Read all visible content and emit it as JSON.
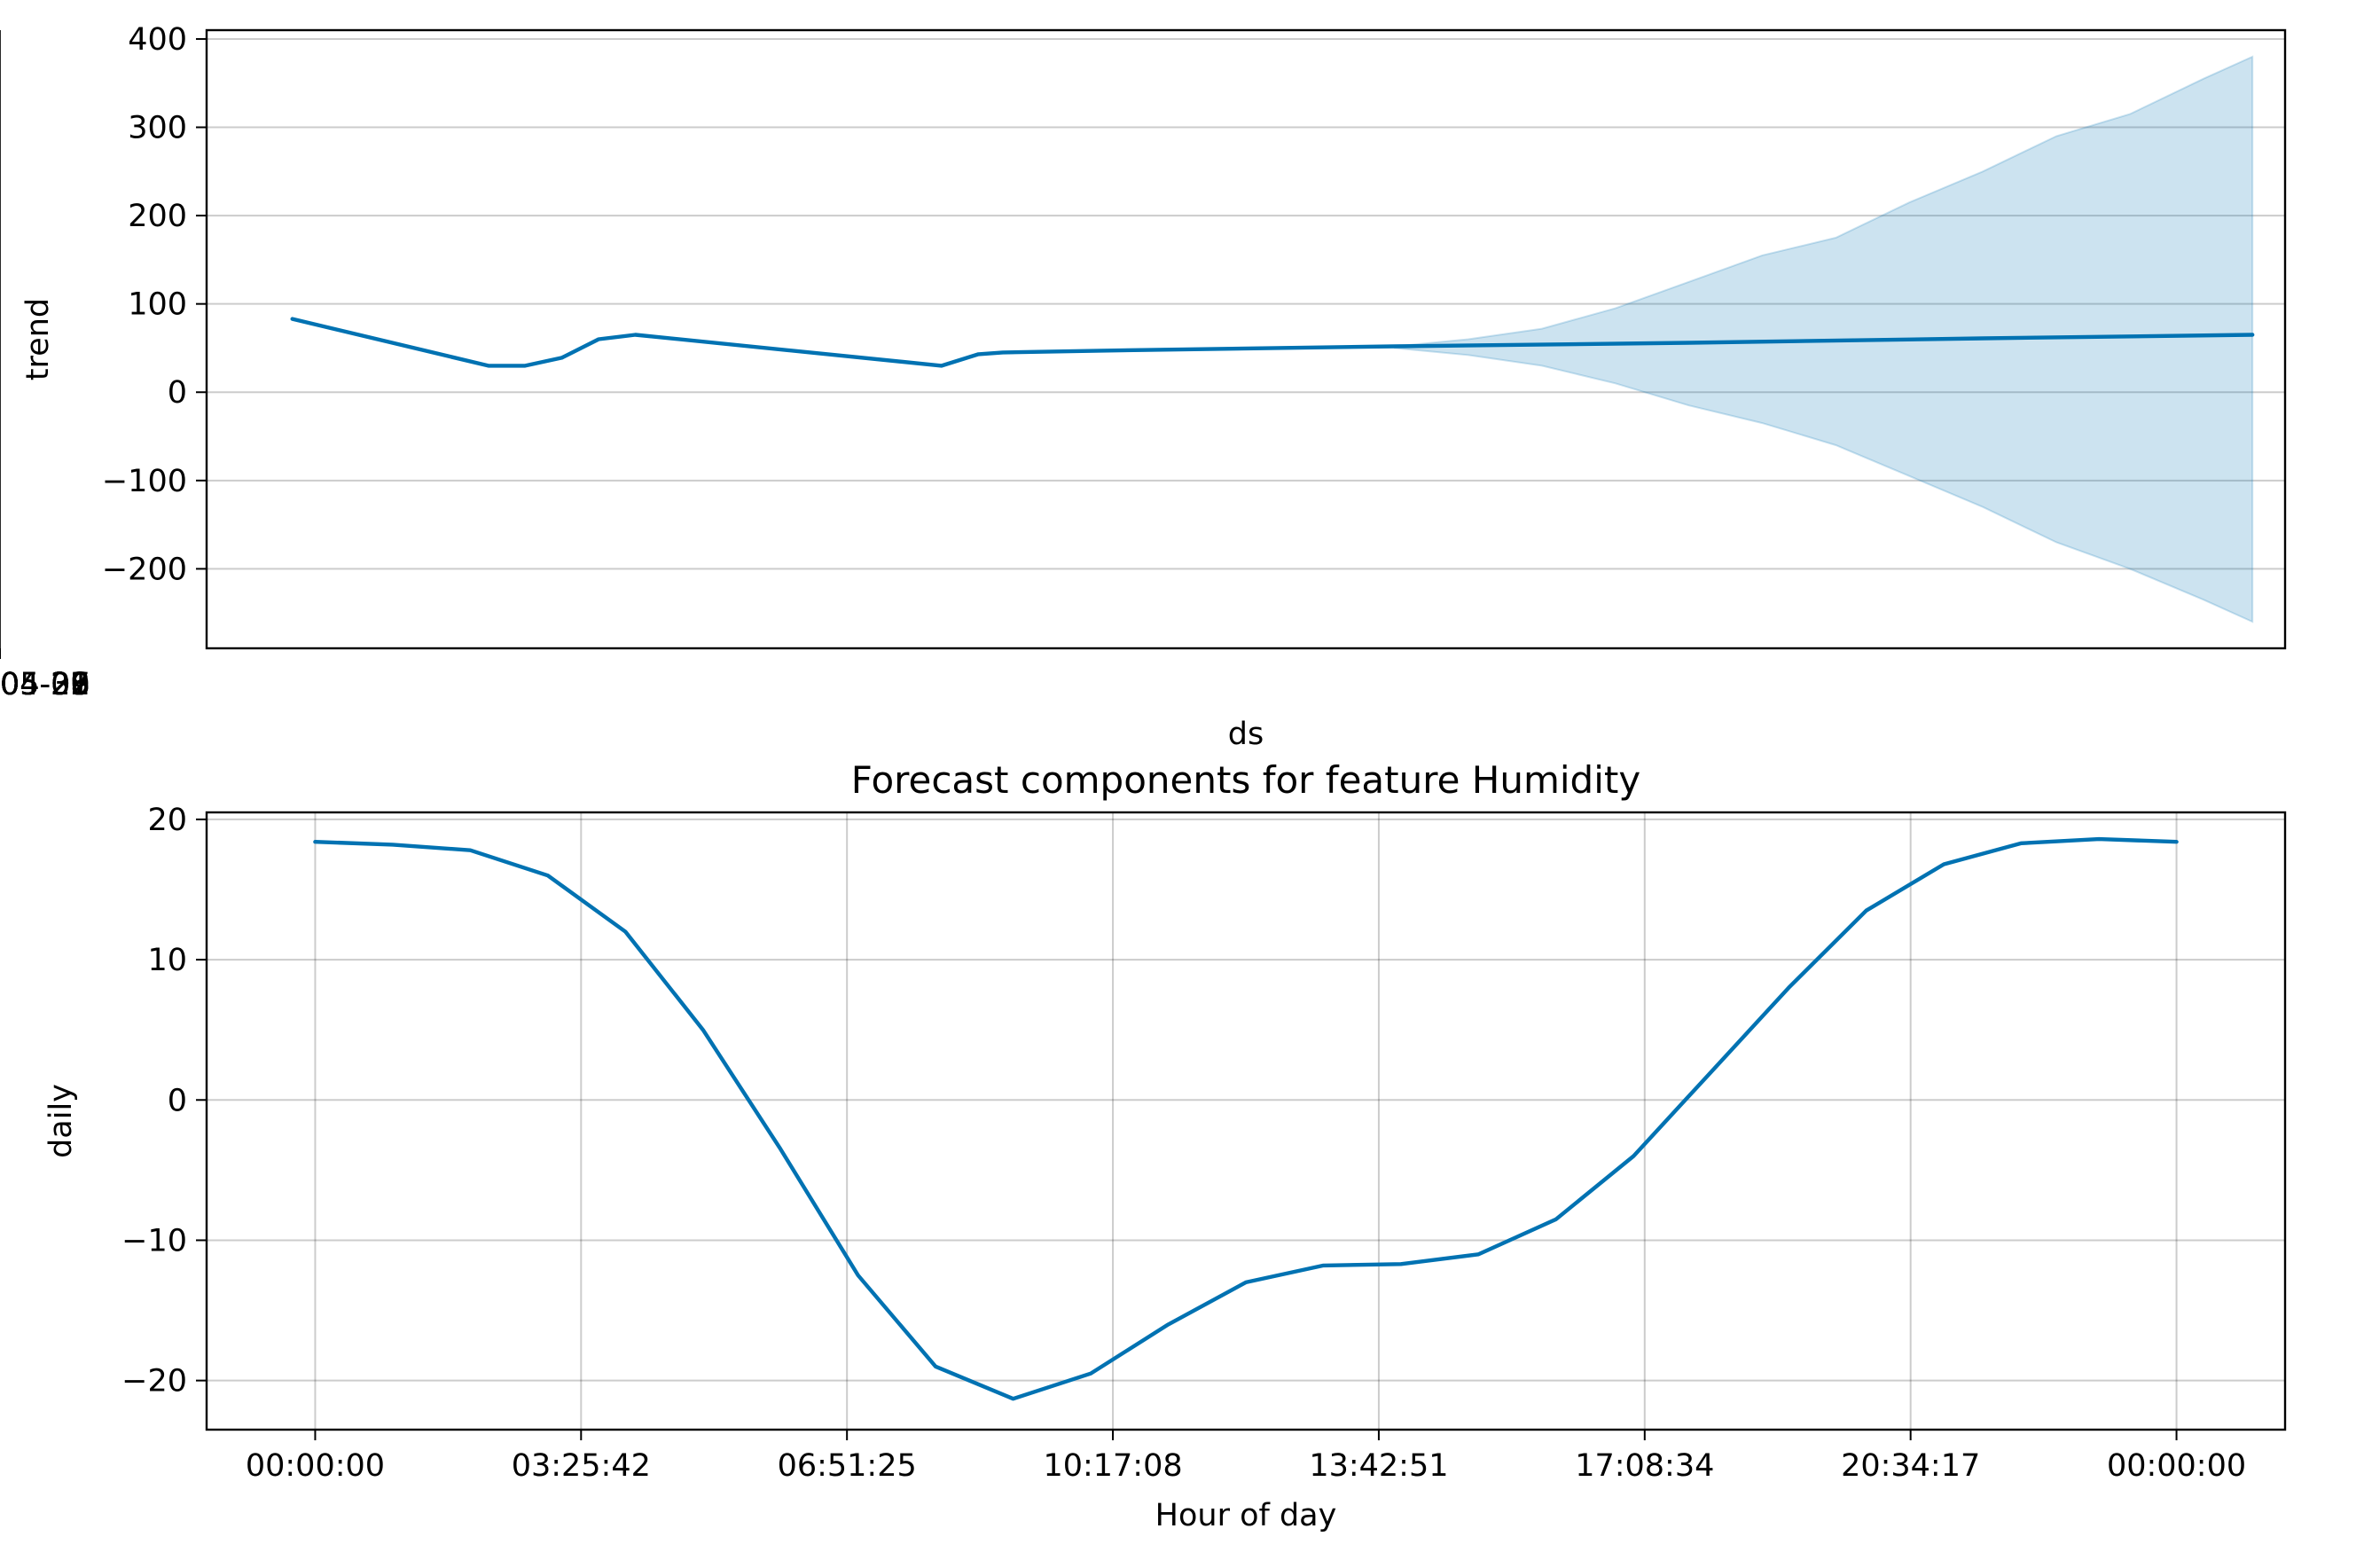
{
  "chart_data": [
    {
      "type": "area",
      "title": "",
      "xlabel": "ds",
      "ylabel": "trend",
      "x_scale": "date",
      "xlim": [
        "2025-04-25T23:00",
        "2025-05-03T00:40"
      ],
      "ylim": [
        -290,
        410
      ],
      "x_ticks": [
        "2025-04-26",
        "2025-04-27",
        "2025-04-28",
        "2025-04-29",
        "2025-04-30",
        "2025-05-01",
        "2025-05-02",
        "2025-05-03"
      ],
      "y_ticks": [
        -200,
        -100,
        0,
        100,
        200,
        300,
        400
      ],
      "y_tick_labels": [
        "−200",
        "−100",
        "0",
        "100",
        "200",
        "300",
        "400"
      ],
      "grid": true,
      "colors": {
        "line": "#0072b2",
        "band": "#0072b2"
      },
      "series": [
        {
          "kind": "line",
          "x": [
            "2025-04-26T06:00",
            "2025-04-26T22:00",
            "2025-04-27T01:00",
            "2025-04-27T04:00",
            "2025-04-27T07:00",
            "2025-04-27T10:00",
            "2025-04-28T11:00",
            "2025-04-28T14:00",
            "2025-04-28T16:00",
            "2025-04-29T00:00",
            "2025-04-30T00:00",
            "2025-05-01T00:00",
            "2025-05-02T00:00",
            "2025-05-02T22:00"
          ],
          "y": [
            83,
            30,
            30,
            39,
            60,
            65,
            30,
            43,
            45,
            47,
            52,
            56,
            61,
            65
          ]
        },
        {
          "kind": "band",
          "x": [
            "2025-04-30T00:00",
            "2025-04-30T06:00",
            "2025-04-30T12:00",
            "2025-04-30T18:00",
            "2025-05-01T00:00",
            "2025-05-01T06:00",
            "2025-05-01T12:00",
            "2025-05-01T18:00",
            "2025-05-02T00:00",
            "2025-05-02T06:00",
            "2025-05-02T12:00",
            "2025-05-02T18:00",
            "2025-05-02T22:00"
          ],
          "upper": [
            52,
            60,
            72,
            95,
            125,
            155,
            175,
            215,
            250,
            290,
            315,
            355,
            380
          ],
          "lower": [
            50,
            42,
            30,
            10,
            -15,
            -35,
            -60,
            -95,
            -130,
            -170,
            -200,
            -235,
            -260
          ]
        }
      ]
    },
    {
      "type": "line",
      "title": "Forecast components for feature Humidity",
      "xlabel": "Hour of day",
      "ylabel": "daily",
      "xlim": [
        -1.4,
        25.4
      ],
      "ylim": [
        -23.5,
        20.5
      ],
      "x_ticks": [
        0,
        3.4283,
        6.8569,
        10.2856,
        13.7142,
        17.1428,
        20.5714,
        24
      ],
      "x_tick_labels": [
        "00:00:00",
        "03:25:42",
        "06:51:25",
        "10:17:08",
        "13:42:51",
        "17:08:34",
        "20:34:17",
        "00:00:00"
      ],
      "y_ticks": [
        -20,
        -10,
        0,
        10,
        20
      ],
      "y_tick_labels": [
        "−20",
        "−10",
        "0",
        "10",
        "20"
      ],
      "grid": true,
      "colors": {
        "line": "#0072b2"
      },
      "series": [
        {
          "x": [
            0,
            1,
            2,
            3,
            4,
            5,
            6,
            7,
            8,
            9,
            10,
            11,
            12,
            13,
            14,
            15,
            16,
            17,
            18,
            19,
            20,
            21,
            22,
            23,
            24
          ],
          "y": [
            18.4,
            18.2,
            17.8,
            16.0,
            12.0,
            5.0,
            -3.5,
            -12.5,
            -19.0,
            -21.3,
            -19.5,
            -16.0,
            -13.0,
            -11.8,
            -11.7,
            -11.0,
            -8.5,
            -4.0,
            2.0,
            8.0,
            13.5,
            16.8,
            18.3,
            18.6,
            18.4
          ]
        }
      ]
    }
  ]
}
